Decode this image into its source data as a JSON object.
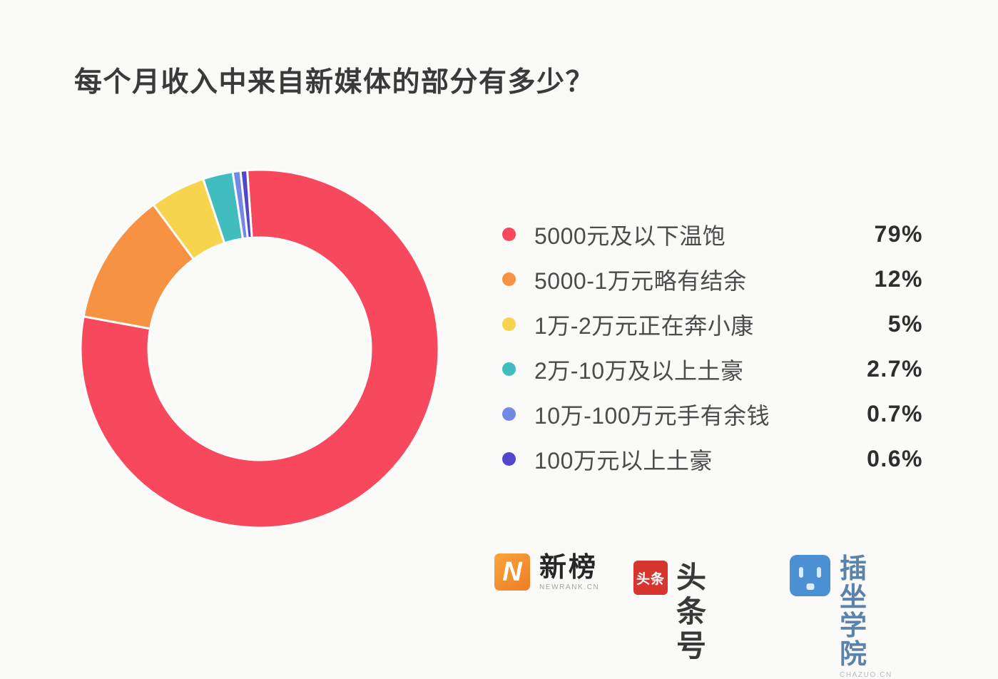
{
  "page": {
    "background": "#fafaf8"
  },
  "chart_data": {
    "type": "donut",
    "title": "每个月收入中来自新媒体的部分有多少？",
    "unit": "%",
    "direction": "clockwise",
    "start_angle_deg": -4,
    "legend_position": "right",
    "segments": [
      {
        "label": "5000元及以下温饱",
        "value": 79,
        "value_label": "79%",
        "color": "#f8485e"
      },
      {
        "label": "5000-1万元略有结余",
        "value": 12,
        "value_label": "12%",
        "color": "#f79243"
      },
      {
        "label": "1万-2万元正在奔小康",
        "value": 5,
        "value_label": "5%",
        "color": "#f6d44d"
      },
      {
        "label": "2万-10万及以上土豪",
        "value": 2.7,
        "value_label": "2.7%",
        "color": "#41bdc0"
      },
      {
        "label": "10万-100万元手有余钱",
        "value": 0.7,
        "value_label": "0.7%",
        "color": "#7289e6"
      },
      {
        "label": "100万元以上土豪",
        "value": 0.6,
        "value_label": "0.6%",
        "color": "#5246cc"
      }
    ]
  },
  "footer": {
    "sponsors": [
      {
        "name": "newrank",
        "icon_letter": "N",
        "icon_gradient": [
          "#f9a53c",
          "#ee7d26"
        ],
        "text": "新榜",
        "subtext": "NEWRANK.CN"
      },
      {
        "name": "toutiao",
        "icon_text": "头条",
        "icon_color": "#d8352f",
        "text": "头条号"
      },
      {
        "name": "chazuo",
        "icon_color": "#4a90d2",
        "text": "插坐学院",
        "subtext": "CHAZUO.CN"
      }
    ]
  }
}
